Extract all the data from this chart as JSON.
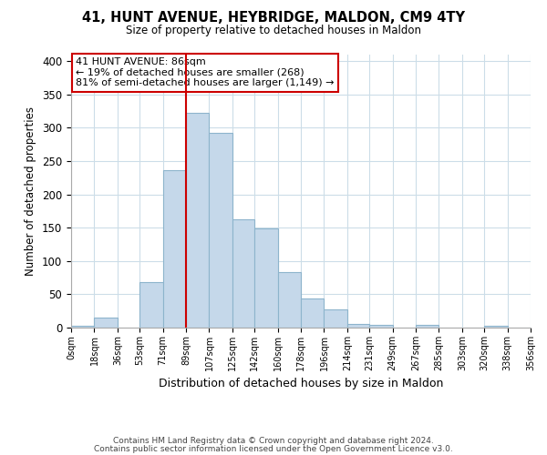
{
  "title": "41, HUNT AVENUE, HEYBRIDGE, MALDON, CM9 4TY",
  "subtitle": "Size of property relative to detached houses in Maldon",
  "xlabel": "Distribution of detached houses by size in Maldon",
  "ylabel": "Number of detached properties",
  "bin_edges": [
    0,
    18,
    36,
    53,
    71,
    89,
    107,
    125,
    142,
    160,
    178,
    196,
    214,
    231,
    249,
    267,
    285,
    303,
    320,
    338,
    356
  ],
  "bar_heights": [
    3,
    15,
    0,
    68,
    236,
    322,
    292,
    163,
    149,
    84,
    44,
    28,
    6,
    4,
    0,
    4,
    0,
    0,
    3,
    0
  ],
  "bar_color": "#c5d8ea",
  "bar_edgecolor": "#8db4cc",
  "vline_x": 89,
  "vline_color": "#cc0000",
  "ylim": [
    0,
    410
  ],
  "yticks": [
    0,
    50,
    100,
    150,
    200,
    250,
    300,
    350,
    400
  ],
  "xtick_labels": [
    "0sqm",
    "18sqm",
    "36sqm",
    "53sqm",
    "71sqm",
    "89sqm",
    "107sqm",
    "125sqm",
    "142sqm",
    "160sqm",
    "178sqm",
    "196sqm",
    "214sqm",
    "231sqm",
    "249sqm",
    "267sqm",
    "285sqm",
    "303sqm",
    "320sqm",
    "338sqm",
    "356sqm"
  ],
  "annotation_title": "41 HUNT AVENUE: 86sqm",
  "annotation_line1": "← 19% of detached houses are smaller (268)",
  "annotation_line2": "81% of semi-detached houses are larger (1,149) →",
  "annotation_box_color": "#ffffff",
  "annotation_box_edgecolor": "#cc0000",
  "footer1": "Contains HM Land Registry data © Crown copyright and database right 2024.",
  "footer2": "Contains public sector information licensed under the Open Government Licence v3.0.",
  "background_color": "#ffffff",
  "grid_color": "#ccdde8"
}
